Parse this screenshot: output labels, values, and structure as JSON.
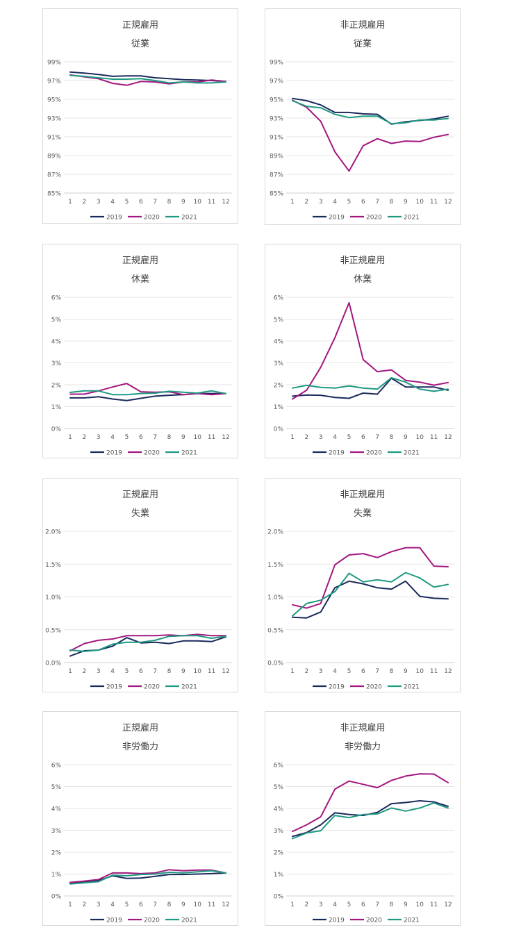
{
  "colors": {
    "2019": "#1b2a5c",
    "2020": "#a3177f",
    "2021": "#1f9a82",
    "grid": "#e4e4e4",
    "axis": "#cfcfcf",
    "text": "#595959"
  },
  "legend": [
    "2019",
    "2020",
    "2021"
  ],
  "chart_data": [
    {
      "type": "line",
      "title": "正規雇用",
      "subtitle": "従業",
      "x": [
        1,
        2,
        3,
        4,
        5,
        6,
        7,
        8,
        9,
        10,
        11,
        12
      ],
      "ylim": [
        85,
        99
      ],
      "ytick_step": 2,
      "yticks": [
        "85%",
        "87%",
        "89%",
        "91%",
        "93%",
        "95%",
        "97%",
        "99%"
      ],
      "series": [
        {
          "name": "2019",
          "values": [
            97.9,
            97.8,
            97.65,
            97.45,
            97.5,
            97.5,
            97.3,
            97.2,
            97.1,
            97.05,
            97.0,
            96.9
          ]
        },
        {
          "name": "2020",
          "values": [
            97.6,
            97.4,
            97.2,
            96.7,
            96.5,
            96.9,
            96.85,
            96.65,
            96.85,
            96.85,
            97.05,
            96.9
          ]
        },
        {
          "name": "2021",
          "values": [
            97.55,
            97.45,
            97.3,
            97.15,
            97.15,
            97.2,
            97.0,
            96.75,
            96.85,
            96.75,
            96.75,
            96.85
          ]
        }
      ]
    },
    {
      "type": "line",
      "title": "非正規雇用",
      "subtitle": "従業",
      "x": [
        1,
        2,
        3,
        4,
        5,
        6,
        7,
        8,
        9,
        10,
        11,
        12
      ],
      "ylim": [
        85,
        99
      ],
      "ytick_step": 2,
      "yticks": [
        "85%",
        "87%",
        "89%",
        "91%",
        "93%",
        "95%",
        "97%",
        "99%"
      ],
      "series": [
        {
          "name": "2019",
          "values": [
            95.1,
            94.85,
            94.4,
            93.6,
            93.6,
            93.45,
            93.4,
            92.35,
            92.6,
            92.75,
            92.9,
            93.2
          ]
        },
        {
          "name": "2020",
          "values": [
            94.9,
            94.15,
            92.65,
            89.4,
            87.35,
            90.05,
            90.8,
            90.3,
            90.55,
            90.5,
            90.95,
            91.25
          ]
        },
        {
          "name": "2021",
          "values": [
            94.85,
            94.25,
            94.1,
            93.4,
            93.05,
            93.2,
            93.2,
            92.4,
            92.5,
            92.8,
            92.8,
            92.95
          ]
        }
      ]
    },
    {
      "type": "line",
      "title": "正規雇用",
      "subtitle": "休業",
      "x": [
        1,
        2,
        3,
        4,
        5,
        6,
        7,
        8,
        9,
        10,
        11,
        12
      ],
      "ylim": [
        0,
        6
      ],
      "ytick_step": 1,
      "yticks": [
        "0%",
        "1%",
        "2%",
        "3%",
        "4%",
        "5%",
        "6%"
      ],
      "series": [
        {
          "name": "2019",
          "values": [
            1.4,
            1.4,
            1.45,
            1.35,
            1.28,
            1.38,
            1.48,
            1.52,
            1.55,
            1.6,
            1.6,
            1.6
          ]
        },
        {
          "name": "2020",
          "values": [
            1.57,
            1.57,
            1.72,
            1.9,
            2.06,
            1.68,
            1.66,
            1.68,
            1.55,
            1.6,
            1.55,
            1.6
          ]
        },
        {
          "name": "2021",
          "values": [
            1.65,
            1.72,
            1.72,
            1.55,
            1.55,
            1.6,
            1.62,
            1.7,
            1.66,
            1.62,
            1.72,
            1.6
          ]
        }
      ]
    },
    {
      "type": "line",
      "title": "非正規雇用",
      "subtitle": "休業",
      "x": [
        1,
        2,
        3,
        4,
        5,
        6,
        7,
        8,
        9,
        10,
        11,
        12
      ],
      "ylim": [
        0,
        6
      ],
      "ytick_step": 1,
      "yticks": [
        "0%",
        "1%",
        "2%",
        "3%",
        "4%",
        "5%",
        "6%"
      ],
      "series": [
        {
          "name": "2019",
          "values": [
            1.48,
            1.53,
            1.52,
            1.42,
            1.38,
            1.62,
            1.57,
            2.3,
            1.9,
            1.9,
            1.9,
            1.75
          ]
        },
        {
          "name": "2020",
          "values": [
            1.35,
            1.75,
            2.8,
            4.15,
            5.75,
            3.15,
            2.6,
            2.68,
            2.2,
            2.12,
            1.98,
            2.1
          ]
        },
        {
          "name": "2021",
          "values": [
            1.85,
            1.97,
            1.88,
            1.85,
            1.95,
            1.85,
            1.8,
            2.32,
            2.12,
            1.8,
            1.7,
            1.8
          ]
        }
      ]
    },
    {
      "type": "line",
      "title": "正規雇用",
      "subtitle": "失業",
      "x": [
        1,
        2,
        3,
        4,
        5,
        6,
        7,
        8,
        9,
        10,
        11,
        12
      ],
      "ylim": [
        0,
        2
      ],
      "ytick_step": 0.5,
      "yticks": [
        "0.0%",
        "0.5%",
        "1.0%",
        "1.5%",
        "2.0%"
      ],
      "series": [
        {
          "name": "2019",
          "values": [
            0.1,
            0.18,
            0.19,
            0.25,
            0.38,
            0.3,
            0.31,
            0.29,
            0.33,
            0.33,
            0.32,
            0.39
          ]
        },
        {
          "name": "2020",
          "values": [
            0.18,
            0.29,
            0.34,
            0.36,
            0.41,
            0.41,
            0.41,
            0.42,
            0.41,
            0.43,
            0.41,
            0.41
          ]
        },
        {
          "name": "2021",
          "values": [
            0.19,
            0.17,
            0.19,
            0.28,
            0.31,
            0.31,
            0.34,
            0.4,
            0.41,
            0.41,
            0.37,
            0.4
          ]
        }
      ]
    },
    {
      "type": "line",
      "title": "非正規雇用",
      "subtitle": "失業",
      "x": [
        1,
        2,
        3,
        4,
        5,
        6,
        7,
        8,
        9,
        10,
        11,
        12
      ],
      "ylim": [
        0,
        2
      ],
      "ytick_step": 0.5,
      "yticks": [
        "0.0%",
        "0.5%",
        "1.0%",
        "1.5%",
        "2.0%"
      ],
      "series": [
        {
          "name": "2019",
          "values": [
            0.69,
            0.68,
            0.77,
            1.14,
            1.24,
            1.2,
            1.14,
            1.12,
            1.24,
            1.01,
            0.98,
            0.97
          ]
        },
        {
          "name": "2020",
          "values": [
            0.88,
            0.83,
            0.9,
            1.49,
            1.64,
            1.66,
            1.6,
            1.69,
            1.75,
            1.75,
            1.47,
            1.46
          ]
        },
        {
          "name": "2021",
          "values": [
            0.71,
            0.9,
            0.95,
            1.08,
            1.36,
            1.23,
            1.26,
            1.23,
            1.37,
            1.29,
            1.15,
            1.19
          ]
        }
      ]
    },
    {
      "type": "line",
      "title": "正規雇用",
      "subtitle": "非労働力",
      "x": [
        1,
        2,
        3,
        4,
        5,
        6,
        7,
        8,
        9,
        10,
        11,
        12
      ],
      "ylim": [
        0,
        6
      ],
      "ytick_step": 1,
      "yticks": [
        "0%",
        "1%",
        "2%",
        "3%",
        "4%",
        "5%",
        "6%"
      ],
      "series": [
        {
          "name": "2019",
          "values": [
            0.6,
            0.65,
            0.7,
            0.92,
            0.8,
            0.82,
            0.9,
            0.98,
            0.98,
            1.0,
            1.02,
            1.05
          ]
        },
        {
          "name": "2020",
          "values": [
            0.62,
            0.68,
            0.75,
            1.05,
            1.05,
            1.02,
            1.05,
            1.2,
            1.15,
            1.18,
            1.18,
            1.05
          ]
        },
        {
          "name": "2021",
          "values": [
            0.55,
            0.6,
            0.65,
            0.95,
            0.92,
            0.98,
            1.0,
            1.08,
            1.05,
            1.1,
            1.15,
            1.05
          ]
        }
      ]
    },
    {
      "type": "line",
      "title": "非正規雇用",
      "subtitle": "非労働力",
      "x": [
        1,
        2,
        3,
        4,
        5,
        6,
        7,
        8,
        9,
        10,
        11,
        12
      ],
      "ylim": [
        0,
        6
      ],
      "ytick_step": 1,
      "yticks": [
        "0%",
        "1%",
        "2%",
        "3%",
        "4%",
        "5%",
        "6%"
      ],
      "series": [
        {
          "name": "2019",
          "values": [
            2.72,
            2.9,
            3.25,
            3.8,
            3.72,
            3.68,
            3.82,
            4.22,
            4.27,
            4.35,
            4.3,
            4.1
          ]
        },
        {
          "name": "2020",
          "values": [
            2.95,
            3.25,
            3.62,
            4.88,
            5.25,
            5.1,
            4.95,
            5.28,
            5.48,
            5.58,
            5.57,
            5.18
          ]
        },
        {
          "name": "2021",
          "values": [
            2.62,
            2.88,
            2.98,
            3.68,
            3.58,
            3.72,
            3.75,
            4.02,
            3.88,
            4.02,
            4.25,
            4.02
          ]
        }
      ]
    }
  ]
}
